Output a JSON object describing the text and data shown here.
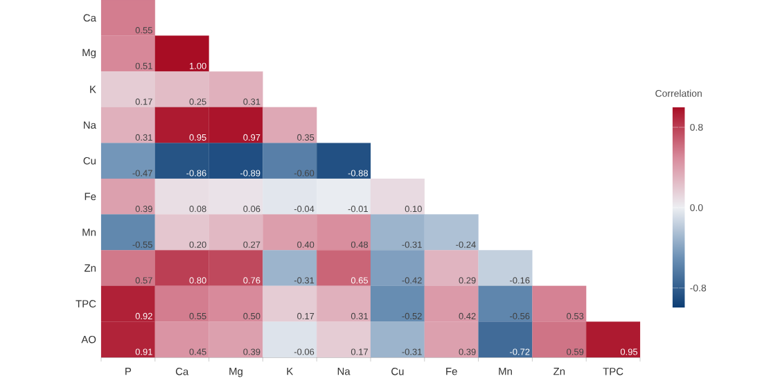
{
  "chart_data": {
    "type": "heatmap",
    "clabel": "Correlation",
    "categories": [
      "P",
      "Ca",
      "Mg",
      "K",
      "Na",
      "Cu",
      "Fe",
      "Mn",
      "Zn",
      "TPC"
    ],
    "y_categories": [
      "Ca",
      "Mg",
      "K",
      "Na",
      "Cu",
      "Fe",
      "Mn",
      "Zn",
      "TPC",
      "AO"
    ],
    "cells": [
      [
        0.55,
        null,
        null,
        null,
        null,
        null,
        null,
        null,
        null,
        null
      ],
      [
        0.51,
        1.0,
        null,
        null,
        null,
        null,
        null,
        null,
        null,
        null
      ],
      [
        0.17,
        0.25,
        0.31,
        null,
        null,
        null,
        null,
        null,
        null,
        null
      ],
      [
        0.31,
        0.95,
        0.97,
        0.35,
        null,
        null,
        null,
        null,
        null,
        null
      ],
      [
        -0.47,
        -0.86,
        -0.89,
        -0.6,
        -0.88,
        null,
        null,
        null,
        null,
        null
      ],
      [
        0.39,
        0.08,
        0.06,
        -0.04,
        -0.01,
        0.1,
        null,
        null,
        null,
        null
      ],
      [
        -0.55,
        0.2,
        0.27,
        0.4,
        0.48,
        -0.31,
        -0.24,
        null,
        null,
        null
      ],
      [
        0.57,
        0.8,
        0.76,
        -0.31,
        0.65,
        -0.42,
        0.29,
        -0.16,
        null,
        null
      ],
      [
        0.92,
        0.55,
        0.5,
        0.17,
        0.31,
        -0.52,
        0.42,
        -0.56,
        0.53,
        null
      ],
      [
        0.91,
        0.45,
        0.39,
        -0.06,
        0.17,
        -0.31,
        0.39,
        -0.72,
        0.59,
        0.95
      ]
    ],
    "cell_labels": [
      [
        "0.55",
        null,
        null,
        null,
        null,
        null,
        null,
        null,
        null,
        null
      ],
      [
        "0.51",
        "1.00",
        null,
        null,
        null,
        null,
        null,
        null,
        null,
        null
      ],
      [
        "0.17",
        "0.25",
        "0.31",
        null,
        null,
        null,
        null,
        null,
        null,
        null
      ],
      [
        "0.31",
        "0.95",
        "0.97",
        "0.35",
        null,
        null,
        null,
        null,
        null,
        null
      ],
      [
        "-0.47",
        "-0.86",
        "-0.89",
        "-0.60",
        "-0.88",
        null,
        null,
        null,
        null,
        null
      ],
      [
        "0.39",
        "0.08",
        "0.06",
        "-0.04",
        "-0.01",
        "0.10",
        null,
        null,
        null,
        null
      ],
      [
        "-0.55",
        "0.20",
        "0.27",
        "0.40",
        "0.48",
        "-0.31",
        "-0.24",
        null,
        null,
        null
      ],
      [
        "0.57",
        "0.80",
        "0.76",
        "-0.31",
        "0.65",
        "-0.42",
        "0.29",
        "-0.16",
        null,
        null
      ],
      [
        "0.92",
        "0.55",
        "0.50",
        "0.17",
        "0.31",
        "-0.52",
        "0.42",
        "-0.56",
        "0.53",
        null
      ],
      [
        "0.91",
        "0.45",
        "0.39",
        "-0.06",
        "0.17",
        "-0.31",
        "0.39",
        "-0.72",
        "0.59",
        "0.95"
      ]
    ],
    "clim": [
      -1,
      1
    ],
    "cticks": [
      {
        "value": 0.8,
        "label": "0.8"
      },
      {
        "value": 0.0,
        "label": "0.0"
      },
      {
        "value": -0.8,
        "label": "-0.8"
      }
    ]
  }
}
